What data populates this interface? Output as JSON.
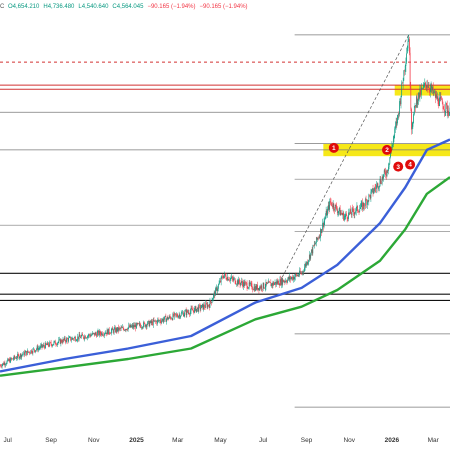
{
  "header": {
    "symbol_fragment": "C",
    "open": "O4,654.210",
    "high": "H4,736.480",
    "low": "L4,540.640",
    "close": "C4,564.045",
    "change": "−90.165 (−1.94%)",
    "change_repeat": "−90.165 (−1.94%)",
    "colors": {
      "up": "#089981",
      "down": "#f23645"
    }
  },
  "chart_data": {
    "type": "line",
    "title": "",
    "xlabel": "",
    "ylabel": "",
    "x_tick_labels": [
      "Jul",
      "Sep",
      "Nov",
      "2025",
      "Mar",
      "May",
      "Jul",
      "Sep",
      "Nov",
      "2026",
      "Mar"
    ],
    "x_range": [
      "2024-06-20",
      "2026-03-25"
    ],
    "y_axis_labels_visible": false,
    "grid": false,
    "legend": "none",
    "series": [
      {
        "kind": "candles",
        "color_up": "#089981",
        "color_down": "#f23645",
        "x": [
          "2024-06-20",
          "2024-07-20",
          "2024-08-20",
          "2024-09-20",
          "2024-10-20",
          "2024-11-20",
          "2024-12-20",
          "2025-01-20",
          "2025-02-20",
          "2025-03-20",
          "2025-04-15",
          "2025-05-05",
          "2025-05-25",
          "2025-06-20",
          "2025-07-15",
          "2025-08-05",
          "2025-08-25",
          "2025-09-20",
          "2025-10-05",
          "2025-10-25",
          "2025-11-20",
          "2025-12-15",
          "2025-12-25",
          "2026-01-10",
          "2026-01-25",
          "2026-01-29",
          "2026-02-05",
          "2026-02-20",
          "2026-03-05",
          "2026-03-25"
        ],
        "y": [
          1.0,
          1.05,
          1.09,
          1.12,
          1.14,
          1.16,
          1.18,
          1.2,
          1.23,
          1.26,
          1.29,
          1.43,
          1.4,
          1.37,
          1.39,
          1.41,
          1.44,
          1.63,
          1.78,
          1.71,
          1.76,
          1.88,
          1.93,
          2.2,
          2.58,
          2.14,
          2.27,
          2.35,
          2.28,
          2.21
        ]
      },
      {
        "name": "",
        "kind": "moving_average",
        "color": "#3b5fd8",
        "x": [
          "2024-06-20",
          "2024-09-20",
          "2024-12-20",
          "2025-03-20",
          "2025-06-20",
          "2025-08-25",
          "2025-10-15",
          "2025-12-15",
          "2026-01-20",
          "2026-02-20",
          "2026-03-25"
        ],
        "y": [
          0.97,
          1.03,
          1.08,
          1.14,
          1.3,
          1.37,
          1.48,
          1.68,
          1.85,
          2.03,
          2.08
        ]
      },
      {
        "name": "",
        "kind": "moving_average",
        "color": "#2ca836",
        "x": [
          "2024-06-20",
          "2024-09-20",
          "2024-12-20",
          "2025-03-20",
          "2025-06-20",
          "2025-08-25",
          "2025-10-15",
          "2025-12-15",
          "2026-01-20",
          "2026-02-20",
          "2026-03-25"
        ],
        "y": [
          0.95,
          0.99,
          1.03,
          1.08,
          1.22,
          1.28,
          1.36,
          1.5,
          1.65,
          1.82,
          1.9
        ]
      }
    ],
    "horizontal_levels": [
      {
        "y": 2.58,
        "color": "#7a7a7a",
        "style": "solid",
        "from": "2025-08-15"
      },
      {
        "y": 2.45,
        "color": "#d23232",
        "style": "dashed"
      },
      {
        "y": 2.34,
        "color": "#d23232",
        "style": "solid"
      },
      {
        "y": 2.32,
        "color": "#d23232",
        "style": "solid"
      },
      {
        "y": 2.21,
        "color": "#7a7a7a",
        "style": "solid"
      },
      {
        "y": 2.06,
        "color": "#7a7a7a",
        "style": "solid",
        "from": "2025-08-15"
      },
      {
        "y": 2.03,
        "color": "#7a7a7a",
        "style": "solid"
      },
      {
        "y": 1.89,
        "color": "#7a7a7a",
        "style": "solid",
        "from": "2025-08-15"
      },
      {
        "y": 1.67,
        "color": "#7a7a7a",
        "style": "solid"
      },
      {
        "y": 1.64,
        "color": "#7a7a7a",
        "style": "solid",
        "from": "2025-08-15"
      },
      {
        "y": 1.44,
        "color": "#111111",
        "style": "solid"
      },
      {
        "y": 1.34,
        "color": "#111111",
        "style": "solid"
      },
      {
        "y": 1.31,
        "color": "#111111",
        "style": "solid"
      },
      {
        "y": 1.15,
        "color": "#7a7a7a",
        "style": "solid",
        "from": "2025-08-15"
      },
      {
        "y": 0.8,
        "color": "#7a7a7a",
        "style": "solid",
        "from": "2025-08-15"
      }
    ],
    "zones": [
      {
        "label": "upper yellow zone",
        "y_low": 2.29,
        "y_high": 2.34,
        "from": "2026-01-05",
        "to": "2026-03-25",
        "color": "#f5e500"
      },
      {
        "label": "lower yellow zone",
        "y_low": 2.0,
        "y_high": 2.06,
        "from": "2025-09-25",
        "to": "2026-03-25",
        "color": "#f5e500"
      }
    ],
    "trendline": {
      "from": [
        "2025-07-25",
        1.4
      ],
      "to": [
        "2026-01-25",
        2.58
      ],
      "color": "#555555",
      "style": "dashed"
    },
    "annotations": [
      {
        "label": "1",
        "x": "2025-10-10",
        "y": 2.04
      },
      {
        "label": "2",
        "x": "2025-12-25",
        "y": 2.03
      },
      {
        "label": "3",
        "x": "2026-01-10",
        "y": 1.95
      },
      {
        "label": "4",
        "x": "2026-01-27",
        "y": 1.96
      }
    ],
    "annotation_color": "#e00b0b"
  }
}
